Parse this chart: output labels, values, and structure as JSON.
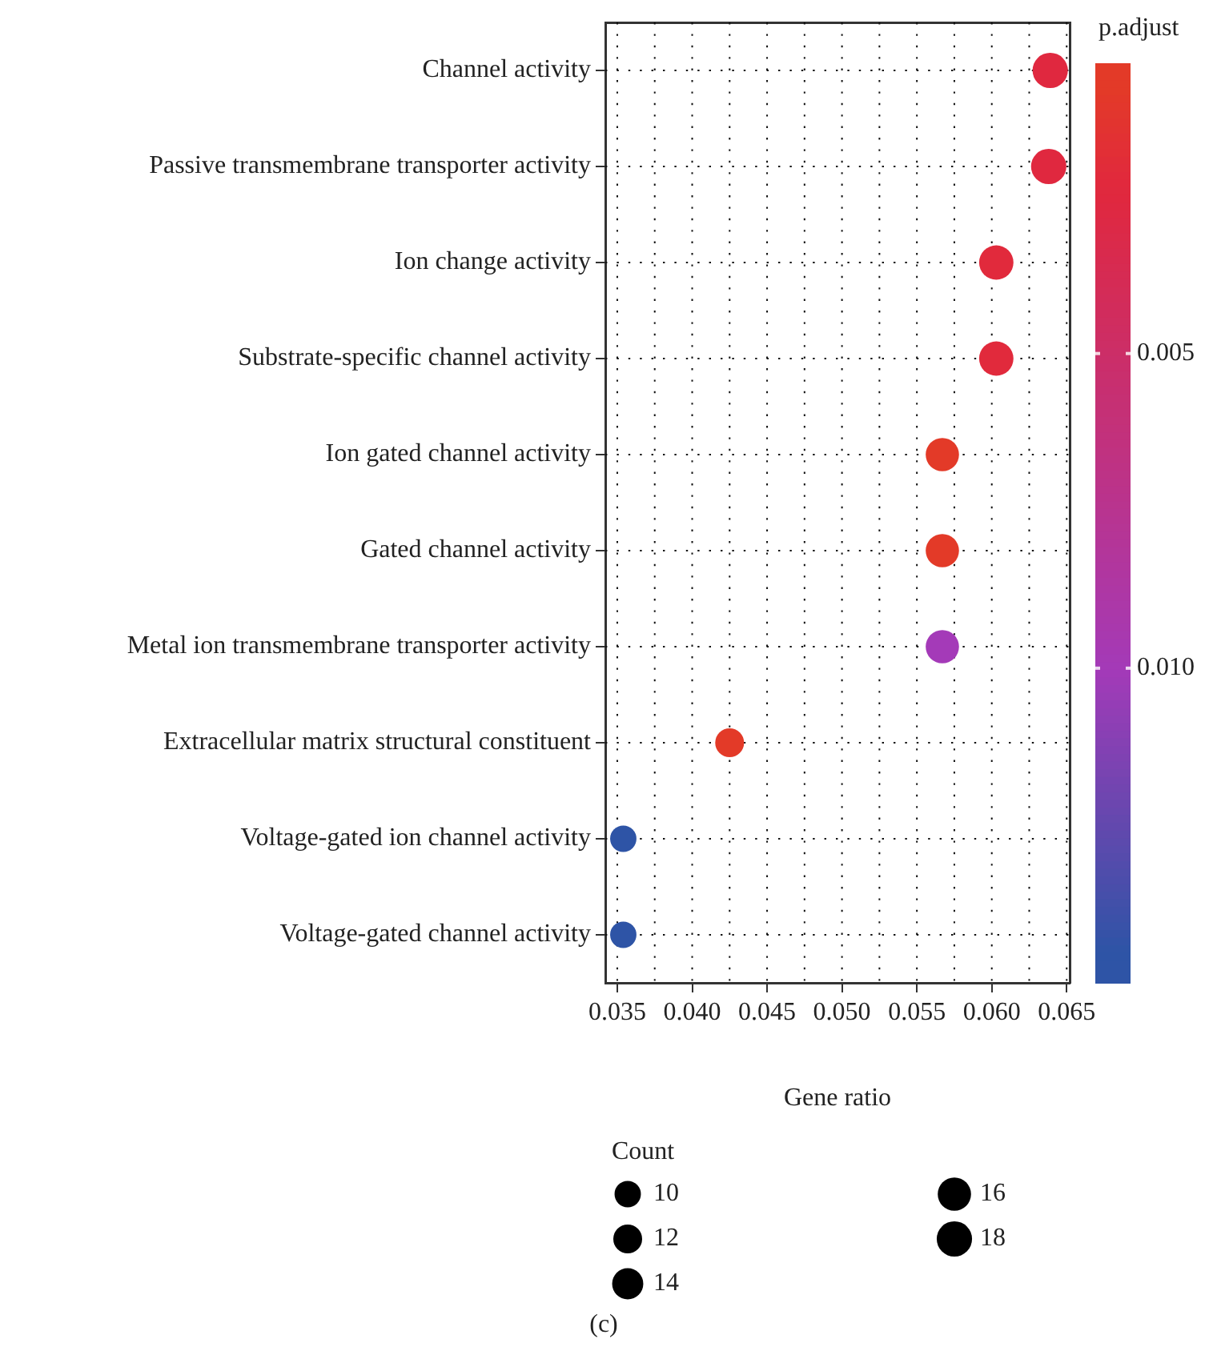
{
  "chart_data": {
    "type": "bubble",
    "categories": [
      "Channel activity",
      "Passive transmembrane transporter activity",
      "Ion change activity",
      "Substrate-specific channel activity",
      "Ion gated channel activity",
      "Gated channel activity",
      "Metal ion transmembrane transporter activity",
      "Extracellular matrix structural constituent",
      "Voltage-gated ion channel activity",
      "Voltage-gated channel activity"
    ],
    "orientation": "horizontal",
    "values": [
      0.0639,
      0.0638,
      0.0603,
      0.0603,
      0.0567,
      0.0567,
      0.0567,
      0.0425,
      0.0354,
      0.0354
    ],
    "sizes": [
      18,
      18,
      17,
      17,
      16,
      16,
      16,
      12,
      10,
      10
    ],
    "cvalues": [
      0.0025,
      0.0025,
      0.0022,
      0.0022,
      0.0008,
      0.0008,
      0.01,
      0.0008,
      0.0145,
      0.0145
    ],
    "colors": [
      "#e0283f",
      "#e0283f",
      "#e12a3c",
      "#e12a3c",
      "#e33a28",
      "#e33a28",
      "#a43ab8",
      "#e33a28",
      "#2e54a6",
      "#2e54a6"
    ],
    "xlim": [
      0.0342,
      0.0652
    ],
    "xticks": [
      0.035,
      {
        "value": 0.0375,
        "label": null
      },
      {
        "value": 0.04,
        "label": "0.040"
      },
      {
        "value": 0.0425,
        "label": null
      },
      0.045,
      {
        "value": 0.0475,
        "label": null
      },
      {
        "value": 0.05,
        "label": "0.050"
      },
      {
        "value": 0.0525,
        "label": null
      },
      0.055,
      {
        "value": 0.0575,
        "label": null
      },
      {
        "value": 0.06,
        "label": "0.060"
      },
      {
        "value": 0.0625,
        "label": null
      },
      0.065
    ],
    "xlabel": "Gene ratio",
    "clabel": "p.adjust",
    "clim": [
      0.015,
      0.0004
    ],
    "cticks": [
      0.005,
      {
        "value": 0.01,
        "label": "0.010"
      }
    ],
    "legend_title": "Count",
    "size_legend": [
      10,
      12,
      14,
      16,
      18
    ],
    "grid": true,
    "annotations": [
      "(c)"
    ]
  }
}
